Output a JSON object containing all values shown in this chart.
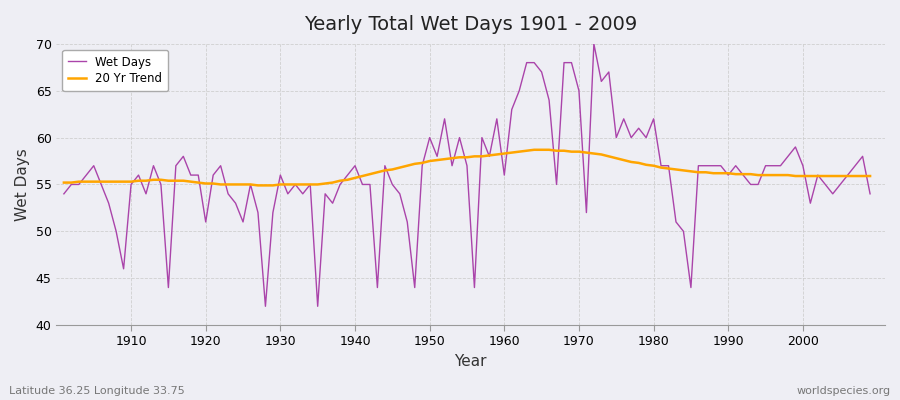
{
  "title": "Yearly Total Wet Days 1901 - 2009",
  "xlabel": "Year",
  "ylabel": "Wet Days",
  "subtitle_left": "Latitude 36.25 Longitude 33.75",
  "subtitle_right": "worldspecies.org",
  "start_year": 1901,
  "end_year": 2009,
  "ylim": [
    40,
    70
  ],
  "yticks": [
    40,
    45,
    50,
    55,
    60,
    65,
    70
  ],
  "line_color": "#AA44AA",
  "trend_color": "#FFA500",
  "bg_color": "#EEEEF4",
  "wet_days": [
    54,
    55,
    55,
    56,
    57,
    55,
    53,
    50,
    46,
    55,
    56,
    54,
    57,
    55,
    44,
    57,
    58,
    56,
    56,
    51,
    56,
    57,
    54,
    53,
    51,
    55,
    52,
    42,
    52,
    56,
    54,
    55,
    54,
    55,
    42,
    54,
    53,
    55,
    56,
    57,
    55,
    55,
    44,
    57,
    55,
    54,
    51,
    44,
    57,
    60,
    58,
    62,
    57,
    60,
    57,
    44,
    60,
    58,
    62,
    56,
    63,
    65,
    68,
    68,
    67,
    64,
    55,
    68,
    68,
    65,
    52,
    70,
    66,
    67,
    60,
    62,
    60,
    61,
    60,
    62,
    57,
    57,
    51,
    50,
    44,
    57,
    57,
    57,
    57,
    56,
    57,
    56,
    55,
    55,
    57,
    57,
    57,
    58,
    59,
    57,
    53,
    56,
    55,
    54,
    55,
    56,
    57,
    58,
    54
  ],
  "trend_days": [
    55.2,
    55.2,
    55.3,
    55.3,
    55.3,
    55.3,
    55.3,
    55.3,
    55.3,
    55.3,
    55.4,
    55.4,
    55.5,
    55.5,
    55.4,
    55.4,
    55.4,
    55.3,
    55.2,
    55.1,
    55.1,
    55.0,
    55.0,
    55.0,
    55.0,
    55.0,
    54.9,
    54.9,
    54.9,
    55.0,
    55.0,
    55.0,
    55.0,
    55.0,
    55.0,
    55.1,
    55.2,
    55.4,
    55.5,
    55.7,
    55.9,
    56.1,
    56.3,
    56.5,
    56.6,
    56.8,
    57.0,
    57.2,
    57.3,
    57.5,
    57.6,
    57.7,
    57.8,
    57.9,
    57.9,
    58.0,
    58.0,
    58.1,
    58.2,
    58.3,
    58.4,
    58.5,
    58.6,
    58.7,
    58.7,
    58.7,
    58.6,
    58.6,
    58.5,
    58.5,
    58.4,
    58.3,
    58.2,
    58.0,
    57.8,
    57.6,
    57.4,
    57.3,
    57.1,
    57.0,
    56.8,
    56.7,
    56.6,
    56.5,
    56.4,
    56.3,
    56.3,
    56.2,
    56.2,
    56.2,
    56.1,
    56.1,
    56.1,
    56.0,
    56.0,
    56.0,
    56.0,
    56.0,
    55.9,
    55.9,
    55.9,
    55.9,
    55.9,
    55.9,
    55.9,
    55.9,
    55.9,
    55.9,
    55.9
  ]
}
